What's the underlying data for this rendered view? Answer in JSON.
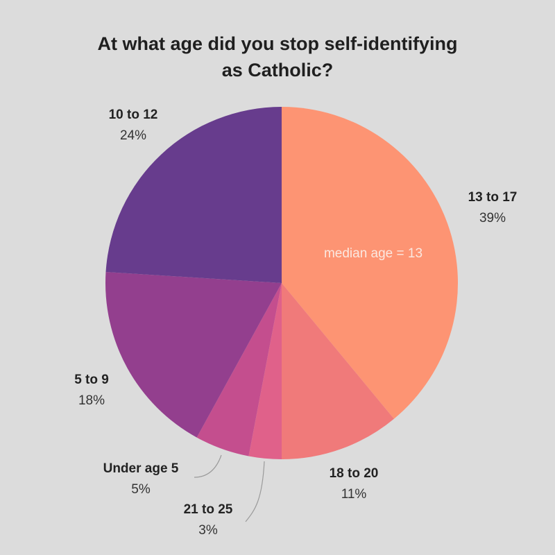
{
  "chart_data": {
    "type": "pie",
    "title_lines": [
      "At what age did you stop self-identifying",
      "as Catholic?"
    ],
    "slices": [
      {
        "label": "13 to 17",
        "value": 39,
        "pct_label": "39%",
        "color": "#fd9473"
      },
      {
        "label": "18 to 20",
        "value": 11,
        "pct_label": "11%",
        "color": "#f07a7a"
      },
      {
        "label": "21 to 25",
        "value": 3,
        "pct_label": "3%",
        "color": "#e0618a"
      },
      {
        "label": "Under age 5",
        "value": 5,
        "pct_label": "5%",
        "color": "#c44e8e"
      },
      {
        "label": "5 to 9",
        "value": 18,
        "pct_label": "18%",
        "color": "#933f8e"
      },
      {
        "label": "10 to 12",
        "value": 24,
        "pct_label": "24%",
        "color": "#673c8d"
      }
    ],
    "start_angle": "top",
    "direction": "clockwise",
    "annotation": "median age = 13"
  },
  "colors": {
    "background": "#dcdcdc",
    "leader_line": "#9a9a9a"
  }
}
